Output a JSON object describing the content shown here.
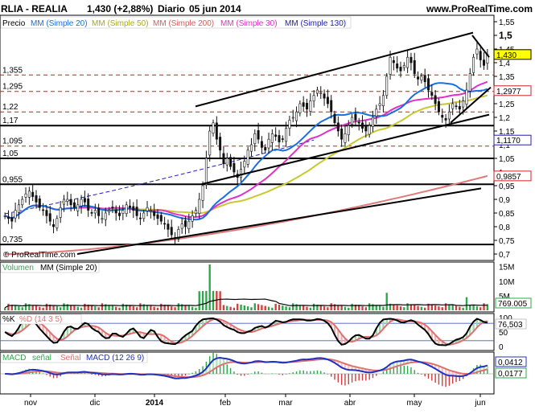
{
  "header": {
    "ticker": "RLIA - REALIA",
    "quote": "1,430 (+2,88%)",
    "period": "Diario",
    "date": "05 jun 2014",
    "site": "www.ProRealTime.com"
  },
  "watermark": "© ProRealTime.com",
  "colors": {
    "candle_up": "#17a53a",
    "candle_down": "#111111",
    "ma20": "#1a6fe0",
    "ma50": "#c8c830",
    "ma200": "#e07a7a",
    "ma30": "#e030c8",
    "ma130": "#2020b0",
    "vol_up": "#2ca84a",
    "vol_down": "#d04040",
    "stoch_k": "#000000",
    "stoch_d": "#e07070",
    "macd_line": "#2030c0",
    "macd_signal": "#e07070"
  },
  "chart_data": [
    {
      "type": "candlestick",
      "legend": [
        "Precio",
        "MM (Simple 20)",
        "MM (Simple 50)",
        "MM (Simple 200)",
        "MM (Simple 30)",
        "MM (Simple 130)"
      ],
      "x_labels": [
        "nov",
        "dic",
        "2014",
        "feb",
        "mar",
        "abr",
        "may",
        "jun"
      ],
      "y_ticks": [
        "1,55",
        "1,5",
        "1,45",
        "1,4",
        "1,35",
        "1,3",
        "1,25",
        "1,2",
        "1,15",
        "1,1",
        "1,05",
        "1",
        "0,95",
        "0,9",
        "0,85",
        "0,8",
        "0,75",
        "0,7"
      ],
      "ylim": [
        0.7,
        1.55
      ],
      "horizontal_levels": [
        {
          "value": 1.355,
          "label": "1,355",
          "style": "dashed",
          "color": "#c02020"
        },
        {
          "value": 1.295,
          "label": "1,295",
          "style": "dashed",
          "color": "#c02020"
        },
        {
          "value": 1.22,
          "label": "1,22",
          "style": "dashed",
          "color": "#c02020"
        },
        {
          "value": 1.17,
          "label": "1,17",
          "style": "solid",
          "color": "#000000"
        },
        {
          "value": 1.095,
          "label": "1,095",
          "style": "dashed",
          "color": "#c02020"
        },
        {
          "value": 1.05,
          "label": "1,05",
          "style": "solid",
          "color": "#000000"
        },
        {
          "value": 0.955,
          "label": "0,955",
          "style": "solid",
          "color": "#000000"
        },
        {
          "value": 0.735,
          "label": "0,735",
          "style": "solid",
          "color": "#000000"
        }
      ],
      "price_tags": [
        {
          "value": 1.43,
          "label": "1,430",
          "bg": "#ffff00",
          "fg": "#000000"
        },
        {
          "value": 1.2977,
          "label": "1,2977",
          "bg": "#ffffff",
          "fg": "#d02020"
        },
        {
          "value": 1.117,
          "label": "1,1170",
          "bg": "#ffffff",
          "fg": "#2020b0"
        },
        {
          "value": 0.9857,
          "label": "0,9857",
          "bg": "#ffffff",
          "fg": "#d02020"
        }
      ],
      "close_approx": [
        0.84,
        0.83,
        0.82,
        0.86,
        0.88,
        0.9,
        0.92,
        0.93,
        0.91,
        0.89,
        0.87,
        0.86,
        0.84,
        0.82,
        0.8,
        0.83,
        0.87,
        0.9,
        0.9,
        0.88,
        0.87,
        0.88,
        0.9,
        0.89,
        0.86,
        0.85,
        0.86,
        0.84,
        0.83,
        0.85,
        0.86,
        0.87,
        0.85,
        0.84,
        0.86,
        0.88,
        0.87,
        0.86,
        0.84,
        0.83,
        0.85,
        0.87,
        0.86,
        0.84,
        0.83,
        0.82,
        0.81,
        0.79,
        0.77,
        0.76,
        0.79,
        0.81,
        0.8,
        0.82,
        0.84,
        0.86,
        0.9,
        0.95,
        1.05,
        1.15,
        1.18,
        1.12,
        1.08,
        1.03,
        1.05,
        1.02,
        1.0,
        0.98,
        1.01,
        1.04,
        1.08,
        1.1,
        1.14,
        1.12,
        1.09,
        1.08,
        1.12,
        1.14,
        1.13,
        1.11,
        1.12,
        1.16,
        1.19,
        1.2,
        1.22,
        1.25,
        1.24,
        1.23,
        1.26,
        1.28,
        1.3,
        1.29,
        1.27,
        1.25,
        1.22,
        1.18,
        1.15,
        1.12,
        1.14,
        1.17,
        1.2,
        1.19,
        1.18,
        1.16,
        1.15,
        1.17,
        1.2,
        1.23,
        1.25,
        1.28,
        1.35,
        1.42,
        1.4,
        1.38,
        1.37,
        1.39,
        1.42,
        1.4,
        1.36,
        1.34,
        1.35,
        1.33,
        1.3,
        1.28,
        1.25,
        1.22,
        1.2,
        1.19,
        1.22,
        1.25,
        1.24,
        1.23,
        1.26,
        1.3,
        1.36,
        1.42,
        1.45,
        1.41,
        1.39,
        1.43
      ]
    },
    {
      "type": "bar",
      "legend": [
        "Volumen",
        "MM (Simple 20)"
      ],
      "y_ticks": [
        "15M",
        "10M",
        "5M"
      ],
      "ylim": [
        0,
        16000000
      ],
      "last_label": "769.005"
    },
    {
      "type": "line",
      "legend": [
        "%K",
        "%D (14 3 5)"
      ],
      "y_ticks": [
        "100",
        "50",
        "0"
      ],
      "ylim": [
        0,
        100
      ],
      "last_label": "76,503"
    },
    {
      "type": "line",
      "legend": [
        "MACD",
        "señal",
        "Señal",
        "MACD (12 26 9)"
      ],
      "last_labels": [
        "0,0412",
        "0,0177"
      ]
    }
  ]
}
